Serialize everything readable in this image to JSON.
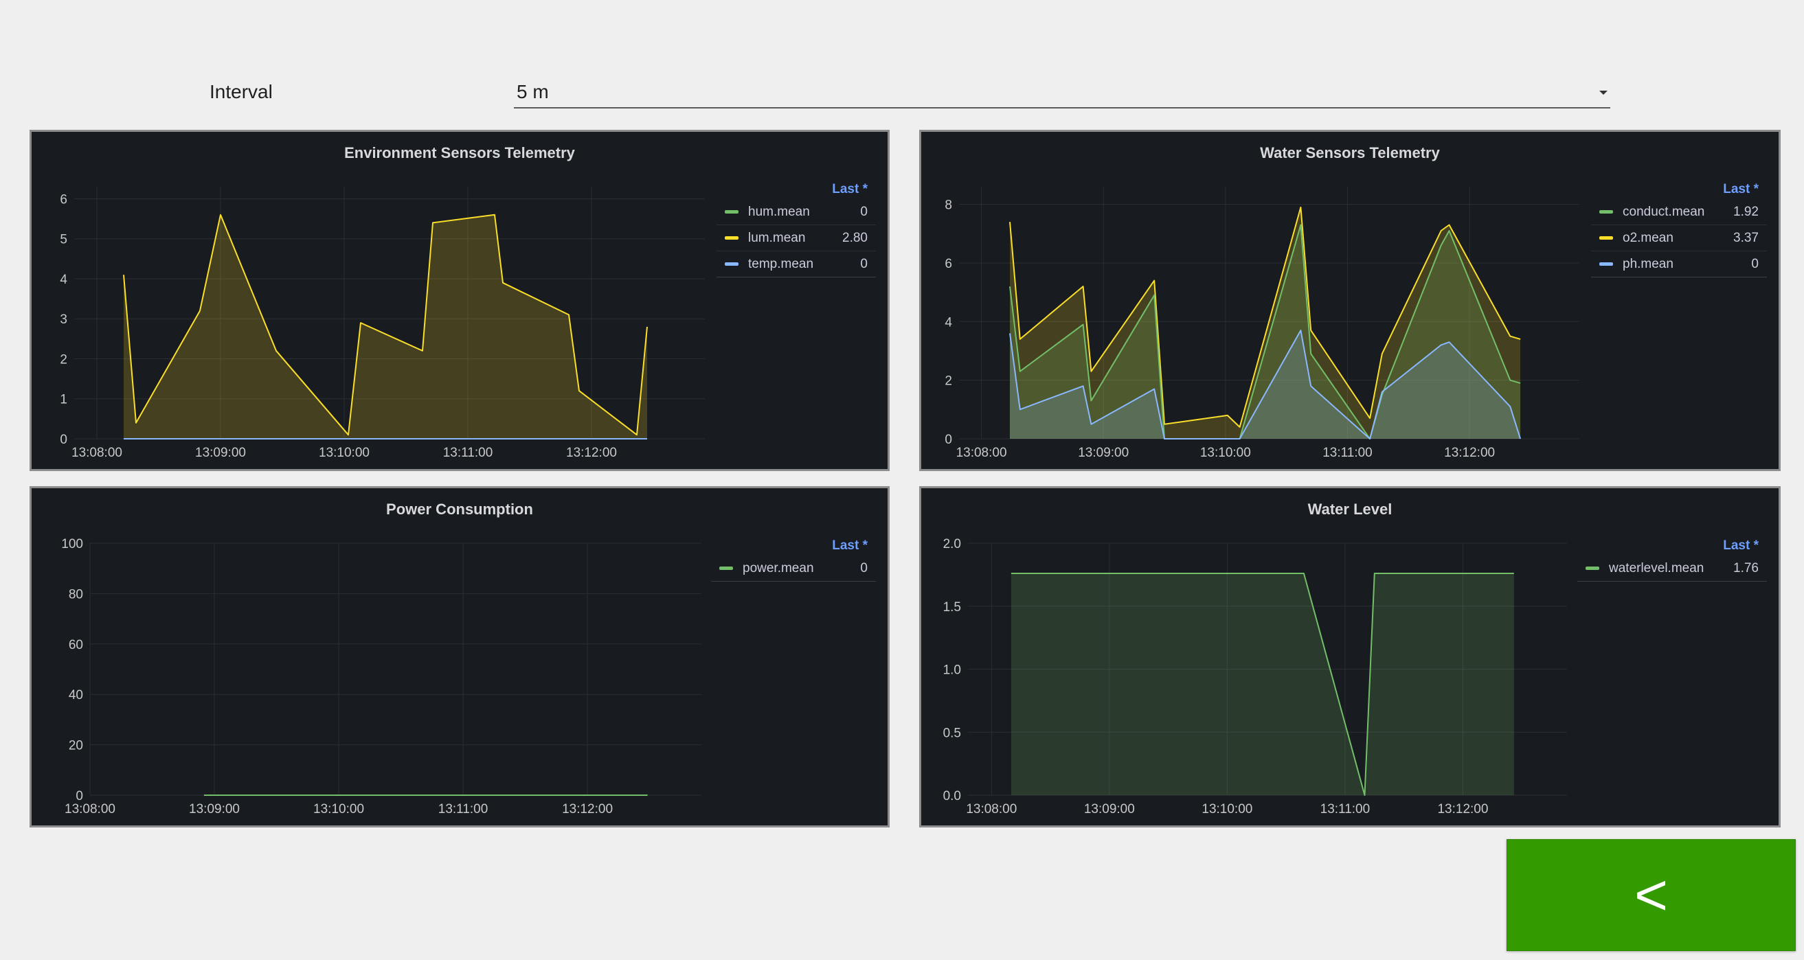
{
  "interval": {
    "label": "Interval",
    "value": "5 m"
  },
  "back_button": {
    "label": "<"
  },
  "colors": {
    "green": "#73bf69",
    "yellow": "#fade2a",
    "blue": "#8ab8ff",
    "accent_button": "#339a00",
    "panel_bg": "#181b1f"
  },
  "panels": [
    {
      "title": "Environment Sensors Telemetry",
      "legend_header": "Last *",
      "legend": [
        {
          "name": "hum.mean",
          "value": "0",
          "color": "#73bf69"
        },
        {
          "name": "lum.mean",
          "value": "2.80",
          "color": "#fade2a"
        },
        {
          "name": "temp.mean",
          "value": "0",
          "color": "#8ab8ff"
        }
      ]
    },
    {
      "title": "Water Sensors Telemetry",
      "legend_header": "Last *",
      "legend": [
        {
          "name": "conduct.mean",
          "value": "1.92",
          "color": "#73bf69"
        },
        {
          "name": "o2.mean",
          "value": "3.37",
          "color": "#fade2a"
        },
        {
          "name": "ph.mean",
          "value": "0",
          "color": "#8ab8ff"
        }
      ]
    },
    {
      "title": "Power Consumption",
      "legend_header": "Last *",
      "legend": [
        {
          "name": "power.mean",
          "value": "0",
          "color": "#73bf69"
        }
      ]
    },
    {
      "title": "Water Level",
      "legend_header": "Last *",
      "legend": [
        {
          "name": "waterlevel.mean",
          "value": "1.76",
          "color": "#73bf69"
        }
      ]
    }
  ],
  "chart_data": [
    {
      "type": "area",
      "title": "Environment Sensors Telemetry",
      "x_ticks": [
        "13:08:00",
        "13:09:00",
        "13:10:00",
        "13:11:00",
        "13:12:00"
      ],
      "xlim": [
        "13:07:49",
        "13:12:55"
      ],
      "y_ticks": [
        "0",
        "1",
        "2",
        "3",
        "4",
        "5",
        "6"
      ],
      "ylim": [
        0,
        6.3
      ],
      "grid": true,
      "legend_placement": "right",
      "series": [
        {
          "name": "lum.mean",
          "color": "#fade2a",
          "points": [
            [
              "13:08:13",
              4.1
            ],
            [
              "13:08:19",
              0.4
            ],
            [
              "13:08:50",
              3.2
            ],
            [
              "13:09:00",
              5.6
            ],
            [
              "13:09:27",
              2.2
            ],
            [
              "13:10:02",
              0.1
            ],
            [
              "13:10:08",
              2.9
            ],
            [
              "13:10:38",
              2.2
            ],
            [
              "13:10:43",
              5.4
            ],
            [
              "13:11:13",
              5.6
            ],
            [
              "13:11:17",
              3.9
            ],
            [
              "13:11:49",
              3.1
            ],
            [
              "13:11:54",
              1.2
            ],
            [
              "13:12:22",
              0.1
            ],
            [
              "13:12:27",
              2.8
            ]
          ]
        },
        {
          "name": "hum.mean",
          "color": "#73bf69",
          "points": [
            [
              "13:08:13",
              0
            ],
            [
              "13:12:27",
              0
            ]
          ]
        },
        {
          "name": "temp.mean",
          "color": "#8ab8ff",
          "points": [
            [
              "13:08:13",
              0
            ],
            [
              "13:12:27",
              0
            ]
          ]
        }
      ]
    },
    {
      "type": "area",
      "title": "Water Sensors Telemetry",
      "x_ticks": [
        "13:08:00",
        "13:09:00",
        "13:10:00",
        "13:11:00",
        "13:12:00"
      ],
      "xlim": [
        "13:07:49",
        "13:12:54"
      ],
      "y_ticks": [
        "0",
        "2",
        "4",
        "6",
        "8"
      ],
      "ylim": [
        0,
        8.6
      ],
      "grid": true,
      "legend_placement": "right",
      "series": [
        {
          "name": "o2.mean",
          "color": "#fade2a",
          "points": [
            [
              "13:08:14",
              7.4
            ],
            [
              "13:08:19",
              3.4
            ],
            [
              "13:08:50",
              5.2
            ],
            [
              "13:08:54",
              2.3
            ],
            [
              "13:09:25",
              5.4
            ],
            [
              "13:09:30",
              0.5
            ],
            [
              "13:10:01",
              0.8
            ],
            [
              "13:10:07",
              0.4
            ],
            [
              "13:10:37",
              7.9
            ],
            [
              "13:10:42",
              3.7
            ],
            [
              "13:11:11",
              0.7
            ],
            [
              "13:11:17",
              2.9
            ],
            [
              "13:11:46",
              7.1
            ],
            [
              "13:11:50",
              7.3
            ],
            [
              "13:12:20",
              3.5
            ],
            [
              "13:12:25",
              3.4
            ]
          ]
        },
        {
          "name": "conduct.mean",
          "color": "#73bf69",
          "points": [
            [
              "13:08:14",
              5.2
            ],
            [
              "13:08:19",
              2.3
            ],
            [
              "13:08:50",
              3.9
            ],
            [
              "13:08:54",
              1.3
            ],
            [
              "13:09:25",
              4.9
            ],
            [
              "13:09:30",
              0
            ],
            [
              "13:10:07",
              0
            ],
            [
              "13:10:37",
              7.3
            ],
            [
              "13:10:42",
              2.9
            ],
            [
              "13:11:11",
              0
            ],
            [
              "13:11:17",
              1.5
            ],
            [
              "13:11:46",
              6.6
            ],
            [
              "13:11:50",
              7.1
            ],
            [
              "13:12:20",
              2.0
            ],
            [
              "13:12:25",
              1.9
            ]
          ]
        },
        {
          "name": "ph.mean",
          "color": "#8ab8ff",
          "points": [
            [
              "13:08:14",
              3.6
            ],
            [
              "13:08:19",
              1.0
            ],
            [
              "13:08:50",
              1.8
            ],
            [
              "13:08:54",
              0.5
            ],
            [
              "13:09:25",
              1.7
            ],
            [
              "13:09:30",
              0
            ],
            [
              "13:10:07",
              0
            ],
            [
              "13:10:37",
              3.7
            ],
            [
              "13:10:42",
              1.8
            ],
            [
              "13:11:11",
              0
            ],
            [
              "13:11:17",
              1.6
            ],
            [
              "13:11:46",
              3.2
            ],
            [
              "13:11:50",
              3.3
            ],
            [
              "13:12:20",
              1.1
            ],
            [
              "13:12:25",
              0
            ]
          ]
        }
      ]
    },
    {
      "type": "line",
      "title": "Power Consumption",
      "x_ticks": [
        "13:08:00",
        "13:09:00",
        "13:10:00",
        "13:11:00",
        "13:12:00"
      ],
      "xlim": [
        "13:08:00",
        "13:12:55"
      ],
      "y_ticks": [
        "0",
        "20",
        "40",
        "60",
        "80",
        "100"
      ],
      "ylim": [
        0,
        100
      ],
      "grid": true,
      "legend_placement": "right",
      "series": [
        {
          "name": "power.mean",
          "color": "#73bf69",
          "points": [
            [
              "13:08:55",
              0
            ],
            [
              "13:12:29",
              0
            ]
          ]
        }
      ]
    },
    {
      "type": "area",
      "title": "Water Level",
      "x_ticks": [
        "13:08:00",
        "13:09:00",
        "13:10:00",
        "13:11:00",
        "13:12:00"
      ],
      "xlim": [
        "13:07:48",
        "13:12:53"
      ],
      "y_ticks": [
        "0.0",
        "0.5",
        "1.0",
        "1.5",
        "2.0"
      ],
      "ylim": [
        0,
        2.0
      ],
      "grid": true,
      "legend_placement": "right",
      "series": [
        {
          "name": "waterlevel.mean",
          "color": "#73bf69",
          "points": [
            [
              "13:08:10",
              1.76
            ],
            [
              "13:10:39",
              1.76
            ],
            [
              "13:11:10",
              0
            ],
            [
              "13:11:15",
              1.76
            ],
            [
              "13:12:26",
              1.76
            ]
          ]
        }
      ]
    }
  ]
}
